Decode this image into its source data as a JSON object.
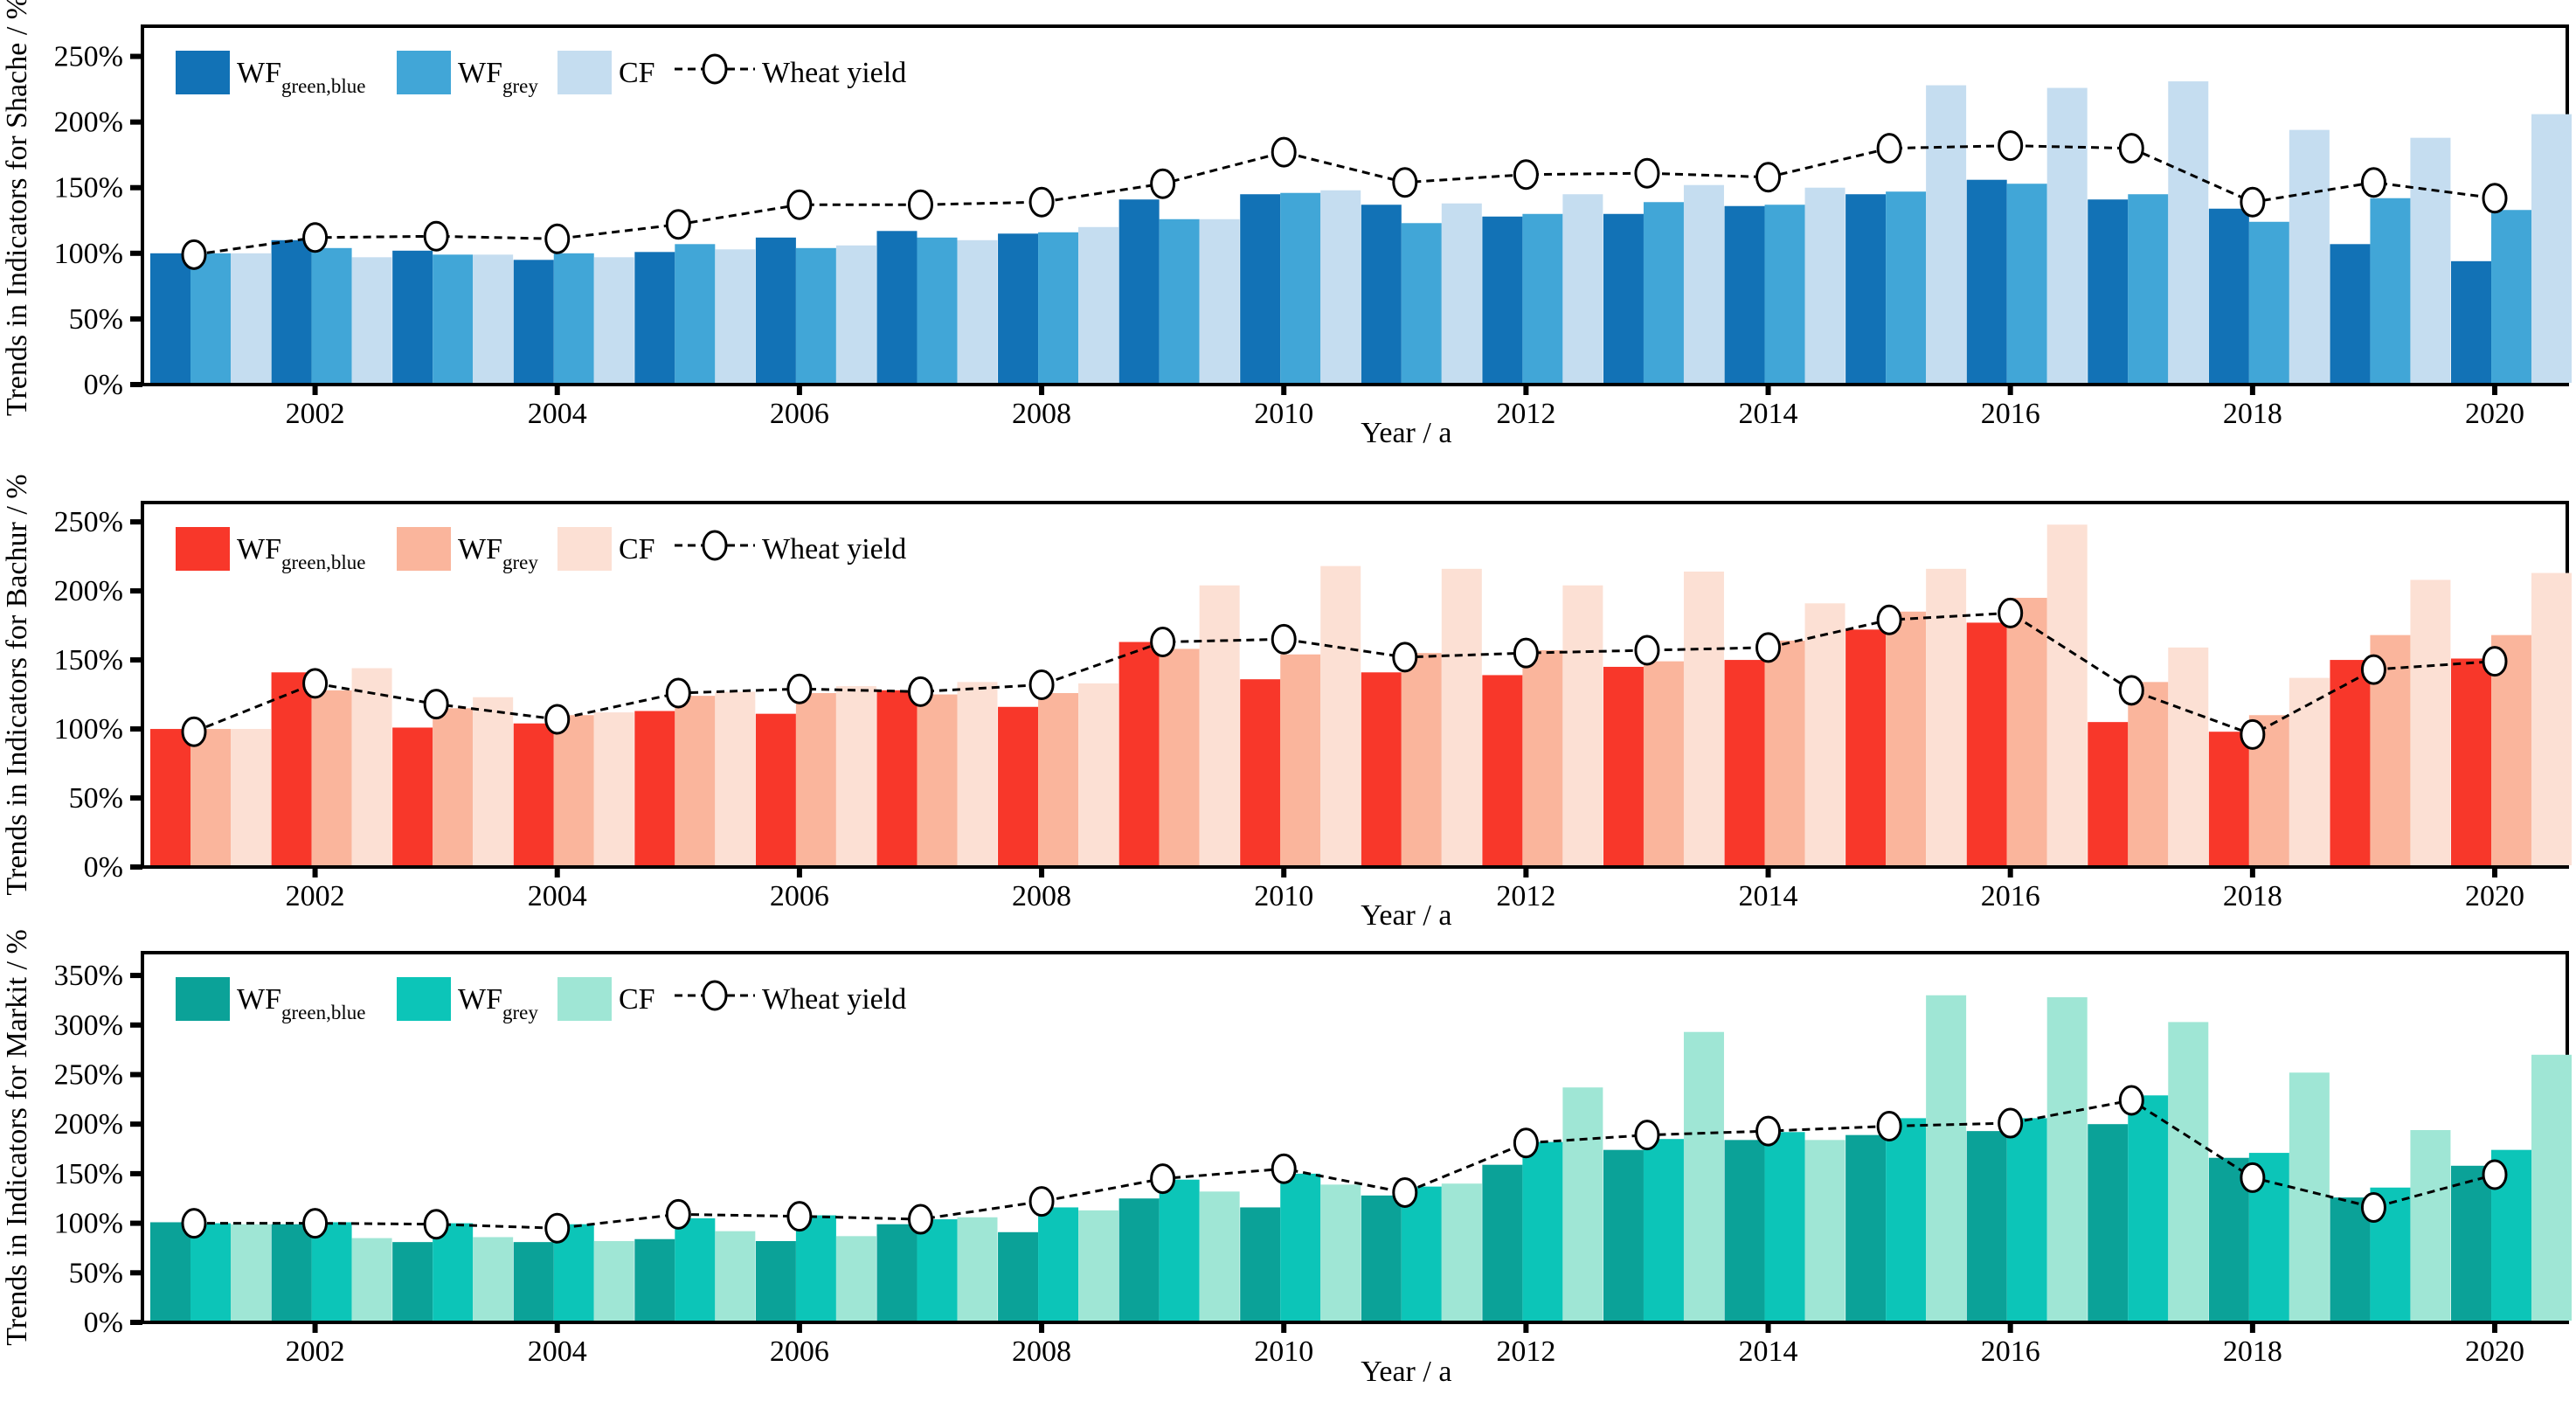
{
  "figure": {
    "xlabel": "Year / a",
    "legend": {
      "wf_greenblue_main": "WF",
      "wf_greenblue_sub": "green,blue",
      "wf_grey_main": "WF",
      "wf_grey_sub": "grey",
      "cf_label": "CF",
      "yield_label": "Wheat yield"
    },
    "line_color": "#000000",
    "marker_fill": "#ffffff"
  },
  "chart_data": [
    {
      "type": "bar+line",
      "region": "Shache",
      "ylabel": "Trends in Indicators for Shache / %",
      "xlabel": "Year / a",
      "ylim": [
        0,
        273
      ],
      "yticks": [
        "0%",
        "50%",
        "100%",
        "150%",
        "200%",
        "250%"
      ],
      "ytick_values": [
        0,
        50,
        100,
        150,
        200,
        250
      ],
      "xticks": [
        "2002",
        "2004",
        "2006",
        "2008",
        "2010",
        "2012",
        "2014",
        "2016",
        "2018",
        "2020"
      ],
      "xtick_years": [
        2002,
        2004,
        2006,
        2008,
        2010,
        2012,
        2014,
        2016,
        2018,
        2020
      ],
      "categories": [
        2001,
        2002,
        2003,
        2004,
        2005,
        2006,
        2007,
        2008,
        2009,
        2010,
        2011,
        2012,
        2013,
        2014,
        2015,
        2016,
        2017,
        2018,
        2019,
        2020
      ],
      "colors": {
        "wf_greenblue": "#1272b6",
        "wf_grey": "#41a6d7",
        "cf": "#c5ddf0"
      },
      "series": [
        {
          "name": "WF green,blue",
          "values": [
            100,
            110,
            102,
            95,
            101,
            112,
            117,
            115,
            141,
            145,
            137,
            128,
            130,
            136,
            145,
            156,
            141,
            134,
            107,
            94
          ]
        },
        {
          "name": "WF grey",
          "values": [
            100,
            104,
            99,
            100,
            107,
            104,
            112,
            116,
            126,
            146,
            123,
            130,
            139,
            137,
            147,
            153,
            145,
            124,
            142,
            133
          ]
        },
        {
          "name": "CF",
          "values": [
            100,
            97,
            99,
            97,
            103,
            106,
            110,
            120,
            126,
            148,
            138,
            145,
            152,
            150,
            228,
            226,
            231,
            194,
            188,
            206
          ]
        }
      ],
      "line_series": {
        "name": "Wheat yield",
        "values": [
          99,
          112,
          113,
          111,
          122,
          137,
          137,
          139,
          153,
          177,
          154,
          160,
          161,
          158,
          180,
          182,
          180,
          139,
          154,
          142
        ]
      }
    },
    {
      "type": "bar+line",
      "region": "Bachur",
      "ylabel": "Trends in Indicators for Bachur / %",
      "xlabel": "Year / a",
      "ylim": [
        0,
        264
      ],
      "yticks": [
        "0%",
        "50%",
        "100%",
        "150%",
        "200%",
        "250%"
      ],
      "ytick_values": [
        0,
        50,
        100,
        150,
        200,
        250
      ],
      "xticks": [
        "2002",
        "2004",
        "2006",
        "2008",
        "2010",
        "2012",
        "2014",
        "2016",
        "2018",
        "2020"
      ],
      "xtick_years": [
        2002,
        2004,
        2006,
        2008,
        2010,
        2012,
        2014,
        2016,
        2018,
        2020
      ],
      "categories": [
        2001,
        2002,
        2003,
        2004,
        2005,
        2006,
        2007,
        2008,
        2009,
        2010,
        2011,
        2012,
        2013,
        2014,
        2015,
        2016,
        2017,
        2018,
        2019,
        2020
      ],
      "colors": {
        "wf_greenblue": "#f8372a",
        "wf_grey": "#fab59c",
        "cf": "#fce0d4"
      },
      "series": [
        {
          "name": "WF green,blue",
          "values": [
            100,
            141,
            101,
            104,
            113,
            111,
            128,
            116,
            163,
            136,
            141,
            139,
            145,
            150,
            172,
            177,
            105,
            98,
            150,
            151
          ]
        },
        {
          "name": "WF grey",
          "values": [
            100,
            128,
            115,
            110,
            124,
            126,
            125,
            126,
            158,
            154,
            155,
            157,
            149,
            164,
            185,
            195,
            134,
            110,
            168,
            168
          ]
        },
        {
          "name": "CF",
          "values": [
            100,
            144,
            123,
            112,
            127,
            131,
            134,
            133,
            204,
            218,
            216,
            204,
            214,
            191,
            216,
            248,
            159,
            137,
            208,
            213
          ]
        }
      ],
      "line_series": {
        "name": "Wheat yield",
        "values": [
          98,
          133,
          118,
          107,
          126,
          129,
          127,
          132,
          163,
          165,
          152,
          155,
          157,
          159,
          179,
          184,
          128,
          96,
          143,
          149
        ]
      }
    },
    {
      "type": "bar+line",
      "region": "Markit",
      "ylabel": "Trends in Indicators for Markit / %",
      "xlabel": "Year / a",
      "ylim": [
        0,
        373
      ],
      "yticks": [
        "0%",
        "50%",
        "100%",
        "150%",
        "200%",
        "250%",
        "300%",
        "350%"
      ],
      "ytick_values": [
        0,
        50,
        100,
        150,
        200,
        250,
        300,
        350
      ],
      "xticks": [
        "2002",
        "2004",
        "2006",
        "2008",
        "2010",
        "2012",
        "2014",
        "2016",
        "2018",
        "2020"
      ],
      "xtick_years": [
        2002,
        2004,
        2006,
        2008,
        2010,
        2012,
        2014,
        2016,
        2018,
        2020
      ],
      "categories": [
        2001,
        2002,
        2003,
        2004,
        2005,
        2006,
        2007,
        2008,
        2009,
        2010,
        2011,
        2012,
        2013,
        2014,
        2015,
        2016,
        2017,
        2018,
        2019,
        2020
      ],
      "colors": {
        "wf_greenblue": "#0ba298",
        "wf_grey": "#0cc5b8",
        "cf": "#9fe6d5"
      },
      "series": [
        {
          "name": "WF green,blue",
          "values": [
            101,
            99,
            81,
            81,
            84,
            82,
            99,
            91,
            125,
            116,
            128,
            159,
            174,
            184,
            189,
            193,
            200,
            166,
            126,
            158
          ]
        },
        {
          "name": "WF grey",
          "values": [
            100,
            101,
            100,
            99,
            105,
            108,
            104,
            116,
            144,
            150,
            137,
            182,
            185,
            192,
            206,
            206,
            229,
            171,
            136,
            174
          ]
        },
        {
          "name": "CF",
          "values": [
            99,
            85,
            86,
            82,
            92,
            87,
            106,
            113,
            132,
            139,
            140,
            237,
            293,
            184,
            330,
            328,
            303,
            252,
            194,
            270
          ]
        }
      ],
      "line_series": {
        "name": "Wheat yield",
        "values": [
          100,
          100,
          99,
          95,
          109,
          107,
          104,
          122,
          145,
          155,
          131,
          181,
          189,
          193,
          198,
          201,
          224,
          146,
          116,
          149
        ]
      }
    }
  ],
  "layout_note": "three stacked bar+line panels, legend top-left inside each panel, grid off"
}
